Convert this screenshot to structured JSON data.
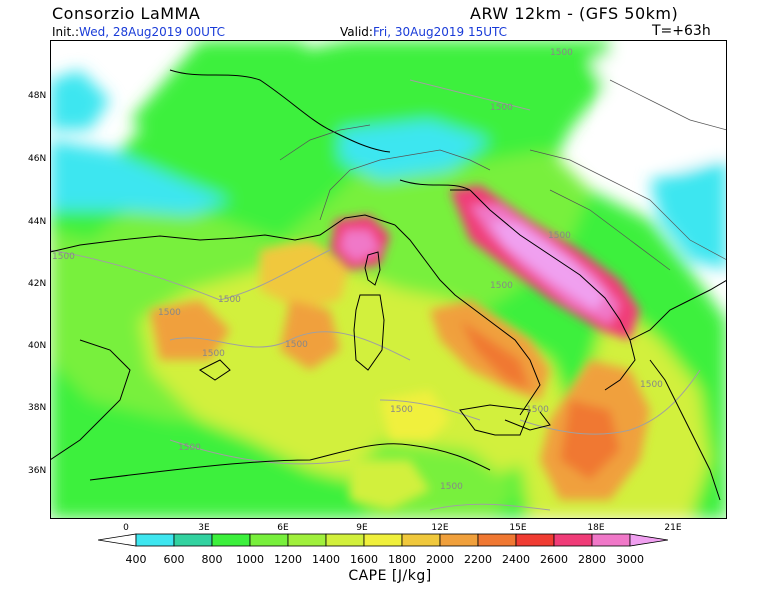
{
  "header": {
    "org": "Consorzio LaMMA",
    "model": "ARW 12km - (GFS 50km)",
    "init_label": "Init.:",
    "init_value": "Wed, 28Aug2019 00UTC",
    "valid_label": "Valid:",
    "valid_value": "Fri, 30Aug2019 15UTC",
    "timestep": "T=+63h"
  },
  "map": {
    "lat_labels": [
      "48N",
      "46N",
      "44N",
      "42N",
      "40N",
      "38N",
      "36N"
    ],
    "lon_labels": [
      "0",
      "3E",
      "6E",
      "9E",
      "12E",
      "15E",
      "18E",
      "21E"
    ],
    "contour_label": "1500",
    "field": "CAPE"
  },
  "colorbar": {
    "title": "CAPE [J/kg]",
    "ticks": [
      "400",
      "600",
      "800",
      "1000",
      "1200",
      "1400",
      "1600",
      "1800",
      "2000",
      "2200",
      "2400",
      "2600",
      "2800",
      "3000"
    ],
    "colors": [
      "#ffffff",
      "#3ee6f0",
      "#32d2a0",
      "#3cf03c",
      "#78f03c",
      "#a0f03c",
      "#d2f03c",
      "#f0f03c",
      "#f0c83c",
      "#f0a03c",
      "#f07832",
      "#f03c32",
      "#f03c78",
      "#f078c8",
      "#f0a0f0"
    ]
  }
}
